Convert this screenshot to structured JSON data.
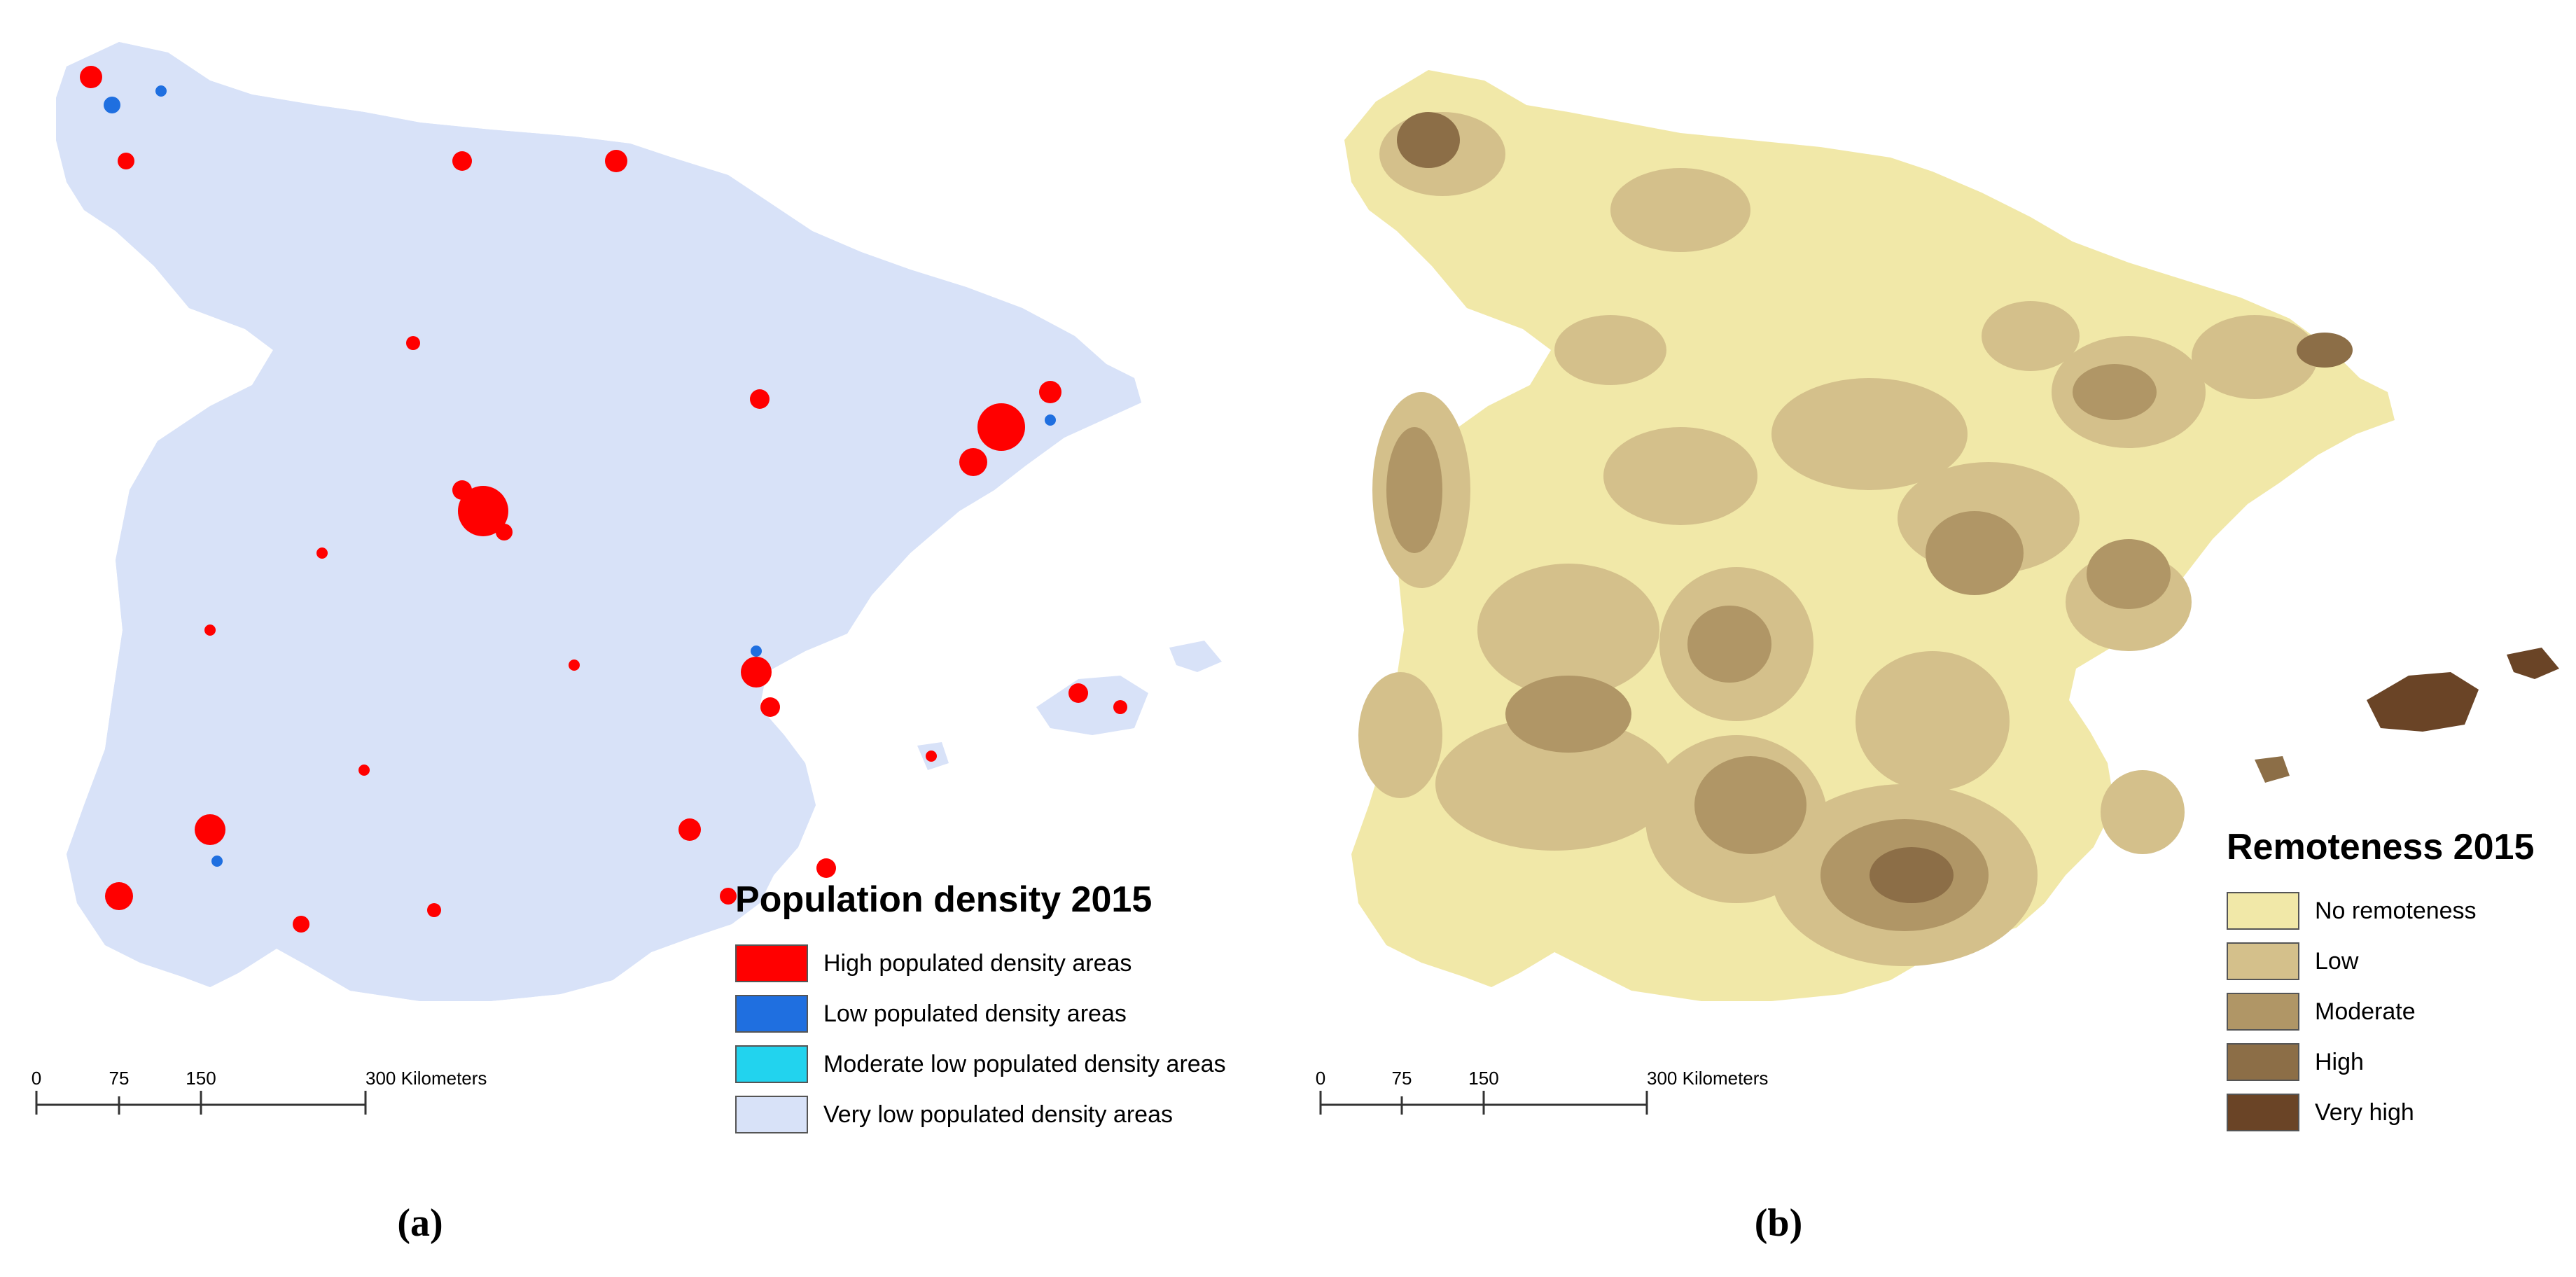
{
  "panels": [
    {
      "label": "(a)",
      "legend": {
        "title": "Population density 2015",
        "items": [
          {
            "label": "High populated density areas",
            "color": "#ff0000"
          },
          {
            "label": "Low populated density areas",
            "color": "#1f6fe0"
          },
          {
            "label": "Moderate low populated density areas",
            "color": "#22d3ee"
          },
          {
            "label": "Very low populated density areas",
            "color": "#d8e2f8"
          }
        ]
      },
      "scale": {
        "ticks": [
          "0",
          "75",
          "150",
          "300 Kilometers"
        ]
      }
    },
    {
      "label": "(b)",
      "legend": {
        "title": "Remoteness 2015",
        "items": [
          {
            "label": "No remoteness",
            "color": "#f1e8a8"
          },
          {
            "label": "Low",
            "color": "#d4c08b"
          },
          {
            "label": "Moderate",
            "color": "#b09666"
          },
          {
            "label": "High",
            "color": "#8c6e47"
          },
          {
            "label": "Very high",
            "color": "#6a4426"
          }
        ]
      },
      "scale": {
        "ticks": [
          "0",
          "75",
          "150",
          "300 Kilometers"
        ]
      }
    }
  ]
}
